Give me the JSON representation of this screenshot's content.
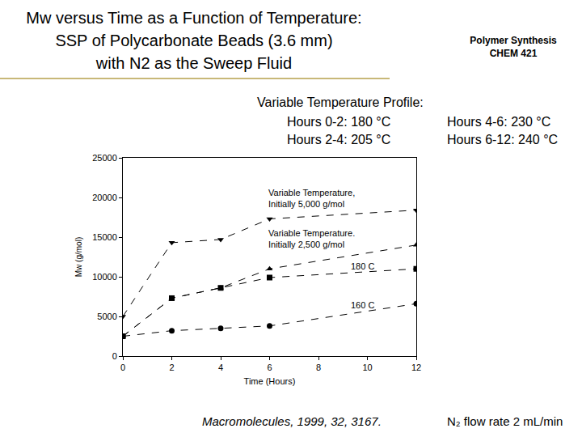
{
  "page": {
    "title": [
      "Mw versus Time as a Function of Temperature:",
      "SSP of Polycarbonate Beads (3.6 mm)",
      "with N2 as the Sweep Fluid"
    ],
    "course": [
      "Polymer Synthesis",
      "CHEM 421"
    ],
    "profile_heading": "Variable Temperature Profile:",
    "profile": [
      "Hours 0-2:  180 °C",
      "Hours 2-4:  205 °C",
      "Hours 4-6:   230 °C",
      "Hours 6-12:  240 °C"
    ],
    "citation": "Macromolecules, 1999, 32, 3167.",
    "flow": "N₂ flow rate 2 mL/min"
  },
  "chart_data": {
    "type": "line",
    "x_label": "Time (Hours)",
    "y_label": "Mw (g/mol)",
    "xlim": [
      0,
      12
    ],
    "xticks": [
      0,
      2,
      4,
      6,
      8,
      10,
      12
    ],
    "ylim": [
      0,
      25000
    ],
    "yticks": [
      0,
      5000,
      10000,
      15000,
      20000,
      25000
    ],
    "grid": false,
    "series": [
      {
        "name": "Variable Temperature,\nInitially 5,000 g/mol",
        "color": "#000000",
        "marker": "triangle-down",
        "line_style": "dash",
        "x": [
          0,
          2,
          4,
          6,
          12
        ],
        "values": [
          5000,
          14300,
          14700,
          17300,
          18400
        ]
      },
      {
        "name": "Variable Temperature.\nInitially 2,500 g/mol",
        "color": "#000000",
        "marker": "triangle-up",
        "line_style": "dash",
        "x": [
          0,
          2,
          4,
          6,
          12
        ],
        "values": [
          2500,
          7300,
          8600,
          11000,
          14000
        ]
      },
      {
        "name": "180 C",
        "color": "#000000",
        "marker": "square",
        "line_style": "dash",
        "x": [
          0,
          2,
          4,
          6,
          12
        ],
        "values": [
          2500,
          7300,
          8600,
          9900,
          11000
        ]
      },
      {
        "name": "160 C",
        "color": "#000000",
        "marker": "circle",
        "line_style": "dash",
        "x": [
          0,
          2,
          4,
          6,
          12
        ],
        "values": [
          2500,
          3200,
          3500,
          3800,
          6600
        ]
      }
    ]
  }
}
